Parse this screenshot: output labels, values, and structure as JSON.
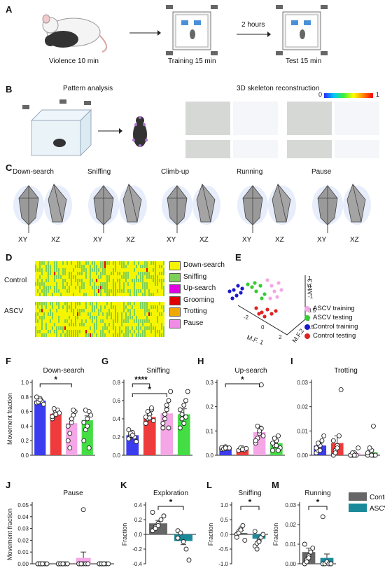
{
  "panels": {
    "A": {
      "letter": "A",
      "violence": "Violence 10 min",
      "training": "Training 15 min",
      "hours": "2 hours",
      "test": "Test 15 min"
    },
    "B": {
      "letter": "B",
      "pattern": "Pattern analysis",
      "skeleton": "3D skeleton reconstruction",
      "scale_min": "0",
      "scale_max": "1"
    },
    "C": {
      "letter": "C",
      "behaviors": [
        "Down-search",
        "Sniffing",
        "Climb-up",
        "Running",
        "Pause"
      ],
      "xy": "XY",
      "xz": "XZ"
    },
    "D": {
      "letter": "D",
      "groups": [
        "Control",
        "ASCV"
      ],
      "legend": [
        {
          "label": "Down-search",
          "color": "#f5f500"
        },
        {
          "label": "Sniffing",
          "color": "#7cd05a"
        },
        {
          "label": "Up-search",
          "color": "#e000e0"
        },
        {
          "label": "Grooming",
          "color": "#e00000"
        },
        {
          "label": "Trotting",
          "color": "#f0a800"
        },
        {
          "label": "Pause",
          "color": "#f08ce6"
        }
      ]
    },
    "E": {
      "letter": "E",
      "xlabel": "M.F. 1",
      "ylabel": "M.F.2",
      "zlabel": "M.F.3",
      "xticks": [
        "-2",
        "0",
        "2"
      ],
      "yticks": [
        "2.5",
        "3",
        "3.5"
      ],
      "zticks": [
        "1",
        "0",
        "-1"
      ],
      "legend": [
        {
          "label": "ASCV training",
          "color": "#f4a6e6"
        },
        {
          "label": "ASCV testing",
          "color": "#33cc33"
        },
        {
          "label": "Control training",
          "color": "#1a1acc"
        },
        {
          "label": "Control testing",
          "color": "#dd2222"
        }
      ]
    },
    "F": "F",
    "G": "G",
    "H": "H",
    "I": "I",
    "J": "J",
    "K": "K",
    "L": "L",
    "M": "M"
  },
  "chart_data": [
    {
      "id": "F",
      "type": "bar",
      "title": "Down-search",
      "ylabel": "Movement fraction",
      "ylim": [
        0,
        1.0
      ],
      "yticks": [
        "0.0",
        "0.2",
        "0.4",
        "0.6",
        "0.8",
        "1.0"
      ],
      "categories": [
        "Control training",
        "Control testing",
        "ASCV training",
        "ASCV testing"
      ],
      "colors": [
        "#3b3bef",
        "#ef3b3b",
        "#f4a6e6",
        "#44dd44"
      ],
      "values": [
        0.75,
        0.57,
        0.44,
        0.48
      ],
      "err": [
        0.02,
        0.03,
        0.06,
        0.06
      ],
      "points": [
        [
          0.72,
          0.76,
          0.78,
          0.74,
          0.7,
          0.8,
          0.73,
          0.76
        ],
        [
          0.5,
          0.55,
          0.6,
          0.62,
          0.58,
          0.53,
          0.64,
          0.56
        ],
        [
          0.2,
          0.3,
          0.45,
          0.55,
          0.6,
          0.4,
          0.1,
          0.5,
          0.62
        ],
        [
          0.2,
          0.35,
          0.5,
          0.6,
          0.55,
          0.45,
          0.62,
          0.4,
          0.1
        ]
      ],
      "signif": [
        {
          "from": 0,
          "to": 2,
          "label": "*"
        }
      ]
    },
    {
      "id": "G",
      "type": "bar",
      "title": "Sniffing",
      "ylim": [
        0,
        0.8
      ],
      "yticks": [
        "0.0",
        "0.2",
        "0.4",
        "0.6",
        "0.8"
      ],
      "categories": [
        "Control training",
        "Control testing",
        "ASCV training",
        "ASCV testing"
      ],
      "colors": [
        "#3b3bef",
        "#ef3b3b",
        "#f4a6e6",
        "#44dd44"
      ],
      "values": [
        0.22,
        0.42,
        0.46,
        0.45
      ],
      "err": [
        0.02,
        0.03,
        0.06,
        0.06
      ],
      "points": [
        [
          0.18,
          0.22,
          0.25,
          0.2,
          0.15,
          0.28,
          0.24,
          0.22
        ],
        [
          0.35,
          0.4,
          0.45,
          0.5,
          0.38,
          0.42,
          0.48,
          0.41,
          0.52
        ],
        [
          0.3,
          0.4,
          0.55,
          0.6,
          0.7,
          0.35,
          0.45,
          0.5,
          0.3
        ],
        [
          0.3,
          0.4,
          0.55,
          0.6,
          0.7,
          0.5,
          0.45,
          0.35,
          0.42
        ]
      ],
      "signif": [
        {
          "from": 0,
          "to": 1,
          "label": "****"
        },
        {
          "from": 0,
          "to": 2,
          "label": "*"
        }
      ]
    },
    {
      "id": "H",
      "type": "bar",
      "title": "Up-search",
      "ylim": [
        0,
        0.3
      ],
      "yticks": [
        "0.0",
        "0.1",
        "0.2",
        "0.3"
      ],
      "categories": [
        "Control training",
        "Control testing",
        "ASCV training",
        "ASCV testing"
      ],
      "colors": [
        "#3b3bef",
        "#ef3b3b",
        "#f4a6e6",
        "#44dd44"
      ],
      "values": [
        0.03,
        0.025,
        0.095,
        0.05
      ],
      "err": [
        0.005,
        0.005,
        0.025,
        0.012
      ],
      "points": [
        [
          0.025,
          0.03,
          0.035,
          0.028,
          0.03,
          0.032,
          0.026,
          0.03
        ],
        [
          0.02,
          0.025,
          0.03,
          0.022,
          0.028,
          0.02,
          0.03,
          0.024
        ],
        [
          0.05,
          0.07,
          0.09,
          0.11,
          0.08,
          0.06,
          0.12,
          0.1,
          0.29
        ],
        [
          0.02,
          0.04,
          0.06,
          0.08,
          0.03,
          0.05,
          0.07,
          0.04,
          0.02
        ]
      ],
      "signif": [
        {
          "from": 0,
          "to": 2,
          "label": "*"
        }
      ]
    },
    {
      "id": "I",
      "type": "bar",
      "title": "Trotting",
      "ylim": [
        0,
        0.03
      ],
      "yticks": [
        "0.00",
        "0.01",
        "0.02",
        "0.03"
      ],
      "categories": [
        "Control training",
        "Control testing",
        "ASCV training",
        "ASCV testing"
      ],
      "colors": [
        "#3b3bef",
        "#ef3b3b",
        "#f4a6e6",
        "#44dd44"
      ],
      "values": [
        0.004,
        0.005,
        0.0008,
        0.0012
      ],
      "err": [
        0.001,
        0.003,
        0.0005,
        0.001
      ],
      "points": [
        [
          0.001,
          0.002,
          0.004,
          0.006,
          0.008,
          0.003,
          0.005,
          0.002
        ],
        [
          0.0,
          0.002,
          0.004,
          0.008,
          0.027,
          0.006,
          0.001,
          0.003
        ],
        [
          0.0,
          0.0,
          0.001,
          0.0,
          0.003,
          0.0,
          0.001,
          0.0
        ],
        [
          0.0,
          0.001,
          0.002,
          0.0,
          0.0,
          0.001,
          0.003,
          0.0,
          0.012
        ]
      ],
      "signif": []
    },
    {
      "id": "J",
      "type": "bar",
      "title": "Pause",
      "ylabel": "Movement fraction",
      "ylim": [
        0,
        0.05
      ],
      "yticks": [
        "0.00",
        "0.01",
        "0.02",
        "0.03",
        "0.04",
        "0.05"
      ],
      "categories": [
        "Control training",
        "Control testing",
        "ASCV training",
        "ASCV testing"
      ],
      "colors": [
        "#3b3bef",
        "#ef3b3b",
        "#f4a6e6",
        "#44dd44"
      ],
      "values": [
        0.0,
        0.0,
        0.005,
        0.0
      ],
      "err": [
        0.0,
        0.0,
        0.005,
        0.0
      ],
      "points": [
        [
          0,
          0,
          0,
          0,
          0,
          0,
          0,
          0
        ],
        [
          0,
          0,
          0,
          0,
          0,
          0,
          0,
          0
        ],
        [
          0,
          0,
          0,
          0,
          0,
          0,
          0,
          0.046
        ],
        [
          0,
          0,
          0,
          0,
          0,
          0,
          0,
          0
        ]
      ],
      "signif": []
    },
    {
      "id": "K",
      "type": "bar",
      "title": "Exploration",
      "ylabel": "Fraction",
      "ylim": [
        -0.4,
        0.4
      ],
      "yticks": [
        "-0.4",
        "-0.2",
        "0.0",
        "0.2",
        "0.4"
      ],
      "categories": [
        "Control",
        "ASCV"
      ],
      "colors": [
        "#666666",
        "#1a8a9a"
      ],
      "values": [
        0.15,
        -0.09
      ],
      "err": [
        0.04,
        0.05
      ],
      "points": [
        [
          0.05,
          0.1,
          0.15,
          0.2,
          0.25,
          0.3,
          0.08,
          0.12
        ],
        [
          0.05,
          0.02,
          -0.1,
          -0.2,
          -0.35,
          -0.05
        ]
      ],
      "signif": [
        {
          "from": 0,
          "to": 1,
          "label": "*"
        }
      ]
    },
    {
      "id": "L",
      "type": "bar",
      "title": "Sniffing",
      "ylabel": "Fraction",
      "ylim": [
        -1.0,
        1.0
      ],
      "yticks": [
        "-1.0",
        "-0.5",
        "0.0",
        "0.5",
        "1.0"
      ],
      "categories": [
        "Control",
        "ASCV"
      ],
      "colors": [
        "#666666",
        "#1a8a9a"
      ],
      "values": [
        0.05,
        -0.15
      ],
      "err": [
        0.08,
        0.08
      ],
      "points": [
        [
          0.0,
          0.1,
          0.2,
          0.3,
          -0.2,
          -0.1,
          0.05,
          0.15
        ],
        [
          -0.4,
          -0.3,
          -0.2,
          -0.1,
          0.0,
          0.1,
          -0.5,
          -0.25
        ]
      ],
      "signif": [
        {
          "from": 0,
          "to": 1,
          "label": "*"
        }
      ]
    },
    {
      "id": "M",
      "type": "bar",
      "title": "Running",
      "ylabel": "Fraction",
      "ylim": [
        0,
        0.03
      ],
      "yticks": [
        "0.00",
        "0.01",
        "0.02",
        "0.03"
      ],
      "categories": [
        "Control",
        "ASCV"
      ],
      "colors": [
        "#666666",
        "#1a8a9a"
      ],
      "values": [
        0.006,
        0.003
      ],
      "err": [
        0.002,
        0.002
      ],
      "points": [
        [
          0.0,
          0.002,
          0.004,
          0.006,
          0.008,
          0.01,
          0.001,
          0.003
        ],
        [
          0.0,
          0.0,
          0.001,
          0.0,
          0.0,
          0.024
        ]
      ],
      "signif": [
        {
          "from": 0,
          "to": 1,
          "label": "*"
        }
      ],
      "legend": [
        {
          "label": "Control",
          "color": "#666666"
        },
        {
          "label": "ASCV",
          "color": "#1a8a9a"
        }
      ]
    }
  ]
}
